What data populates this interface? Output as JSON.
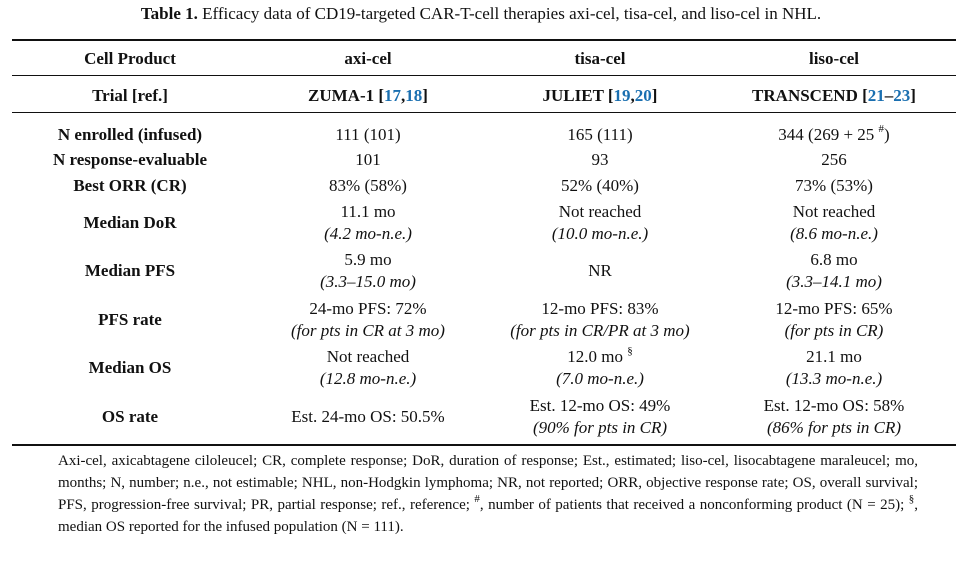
{
  "caption": {
    "label": "Table 1.",
    "text": "Efficacy data of CD19-targeted CAR-T-cell therapies axi-cel, tisa-cel, and liso-cel in NHL."
  },
  "header": {
    "col0": "Cell Product",
    "col1": "axi-cel",
    "col2": "tisa-cel",
    "col3": "liso-cel"
  },
  "trial": {
    "label": "Trial [ref.]",
    "axi": {
      "name": "ZUMA-1",
      "open": "[",
      "r1": "17",
      "sep": ",",
      "r2": "18",
      "close": "]"
    },
    "tisa": {
      "name": "JULIET",
      "open": "[",
      "r1": "19",
      "sep": ",",
      "r2": "20",
      "close": "]"
    },
    "liso": {
      "name": "TRANSCEND",
      "open": "[",
      "r1": "21",
      "sep": "–",
      "r2": "23",
      "close": "]"
    }
  },
  "rows": {
    "enrolled": {
      "label": "N enrolled (infused)",
      "axi": "111 (101)",
      "tisa": "165 (111)",
      "liso_a": "344 (269 + 25 ",
      "liso_sup": "#",
      "liso_b": ")"
    },
    "evaluable": {
      "label": "N response-evaluable",
      "axi": "101",
      "tisa": "93",
      "liso": "256"
    },
    "orr": {
      "label": "Best ORR (CR)",
      "axi": "83% (58%)",
      "tisa": "52% (40%)",
      "liso": "73% (53%)"
    },
    "dor": {
      "label": "Median DoR",
      "axi": "11.1 mo",
      "axi_sub": "(4.2 mo-n.e.)",
      "tisa": "Not reached",
      "tisa_sub": "(10.0 mo-n.e.)",
      "liso": "Not reached",
      "liso_sub": "(8.6 mo-n.e.)"
    },
    "pfs": {
      "label": "Median PFS",
      "axi": "5.9 mo",
      "axi_sub": "(3.3–15.0 mo)",
      "tisa": "NR",
      "liso": "6.8 mo",
      "liso_sub": "(3.3–14.1 mo)"
    },
    "pfs_rate": {
      "label": "PFS rate",
      "axi": "24-mo PFS: 72%",
      "axi_sub": "(for pts in CR at 3 mo)",
      "tisa": "12-mo PFS: 83%",
      "tisa_sub": "(for pts in CR/PR at 3 mo)",
      "liso": "12-mo PFS: 65%",
      "liso_sub": "(for pts in CR)"
    },
    "os": {
      "label": "Median OS",
      "axi": "Not reached",
      "axi_sub": "(12.8 mo-n.e.)",
      "tisa": "12.0 mo ",
      "tisa_sup": "§",
      "tisa_sub": "(7.0 mo-n.e.)",
      "liso": "21.1 mo",
      "liso_sub": "(13.3 mo-n.e.)"
    },
    "os_rate": {
      "label": "OS rate",
      "axi": "Est. 24-mo OS: 50.5%",
      "tisa": "Est. 12-mo OS: 49%",
      "tisa_sub": "(90% for pts in CR)",
      "liso": "Est. 12-mo OS: 58%",
      "liso_sub": "(86% for pts in CR)"
    }
  },
  "footnote": {
    "p1": "Axi-cel, axicabtagene ciloleucel; CR, complete response; DoR, duration of response; Est., estimated; liso-cel, lisocabtagene maraleucel; mo, months; N, number; n.e., not estimable; NHL, non-Hodgkin lymphoma; NR, not reported; ORR, objective response rate; OS, overall survival; PFS, progression-free survival; PR, partial response; ref., reference; ",
    "sup1": "#",
    "p2": ", number of patients that received a nonconforming product (N = 25); ",
    "sup2": "§",
    "p3": ", median OS reported for the infused population (N = 111)."
  }
}
